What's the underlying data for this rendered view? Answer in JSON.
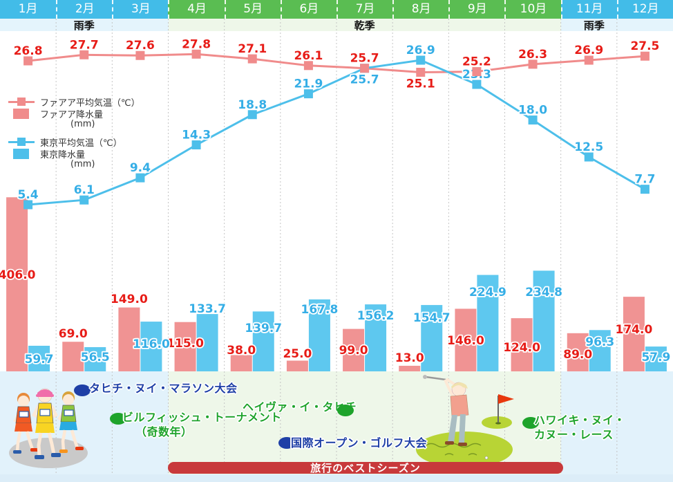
{
  "months": [
    "1月",
    "2月",
    "3月",
    "4月",
    "5月",
    "6月",
    "7月",
    "8月",
    "9月",
    "10月",
    "11月",
    "12月"
  ],
  "seasons": [
    {
      "label": "雨季",
      "start": 1,
      "end": 3,
      "type": "rainy"
    },
    {
      "label": "乾季",
      "start": 4,
      "end": 10,
      "type": "dry"
    },
    {
      "label": "雨季",
      "start": 11,
      "end": 12,
      "type": "rainy"
    }
  ],
  "legend": {
    "faaa_temp": "ファアア平均気温（℃）",
    "faaa_rain": "ファアア降水量",
    "tokyo_temp": "東京平均気温（℃）",
    "tokyo_rain": "東京降水量",
    "unit": "(mm)"
  },
  "chart_data": {
    "type": "line+bar",
    "categories": [
      "1月",
      "2月",
      "3月",
      "4月",
      "5月",
      "6月",
      "7月",
      "8月",
      "9月",
      "10月",
      "11月",
      "12月"
    ],
    "series": [
      {
        "name": "ファアア平均気温（℃）",
        "type": "line",
        "unit": "℃",
        "color": "#f08b8b",
        "values": [
          26.8,
          27.7,
          27.6,
          27.8,
          27.1,
          26.1,
          25.7,
          25.1,
          25.2,
          26.3,
          26.9,
          27.5
        ]
      },
      {
        "name": "東京平均気温（℃）",
        "type": "line",
        "unit": "℃",
        "color": "#4dbfea",
        "values": [
          5.4,
          6.1,
          9.4,
          14.3,
          18.8,
          21.9,
          25.7,
          26.9,
          23.3,
          18.0,
          12.5,
          7.7
        ]
      },
      {
        "name": "ファアア降水量(mm)",
        "type": "bar",
        "unit": "mm",
        "color": "#f09393",
        "values": [
          406.0,
          69.0,
          149.0,
          115.0,
          38.0,
          25.0,
          99.0,
          13.0,
          146.0,
          124.0,
          89.0,
          174.0
        ]
      },
      {
        "name": "東京降水量(mm)",
        "type": "bar",
        "unit": "mm",
        "color": "#5ec8ef",
        "values": [
          59.7,
          56.5,
          116.0,
          133.7,
          139.7,
          167.8,
          156.2,
          154.7,
          224.9,
          234.8,
          96.3,
          57.9
        ]
      }
    ],
    "legend_position": "left-middle",
    "grid": "vertical-dashed"
  },
  "events": [
    {
      "label": "タヒチ・ヌイ・マラソン大会",
      "color": "#1e3fa6"
    },
    {
      "label": "ビルフィッシュ・トーナメント",
      "label2": "（奇数年）",
      "color": "#1ea32b"
    },
    {
      "label": "ヘイヴァ・イ・タヒチ",
      "color": "#1ea32b"
    },
    {
      "label": "国際オープン・ゴルフ大会",
      "color": "#1e3fa6"
    },
    {
      "label": "ハワイキ・ヌイ・",
      "label2": "カヌー・レース",
      "color": "#1ea32b"
    }
  ],
  "best_season": {
    "label": "旅行のベストシーズン",
    "color": "#c8393b"
  },
  "colors": {
    "month_header_rainy": "#42bce8",
    "month_header_dry": "#5abd52",
    "season_bg_rainy": "#e4f4fc",
    "season_bg_dry": "#eef7e9",
    "faaa_line": "#f08b8b",
    "faaa_bar": "#f09393",
    "faaa_label": "#e71c17",
    "tokyo_line": "#4dbfea",
    "tokyo_bar": "#5ec8ef",
    "tokyo_label": "#35aee6",
    "gridline": "#c4c4c4",
    "best_season_bar": "#c8393b",
    "bottom_strip": "#dcedf8"
  }
}
